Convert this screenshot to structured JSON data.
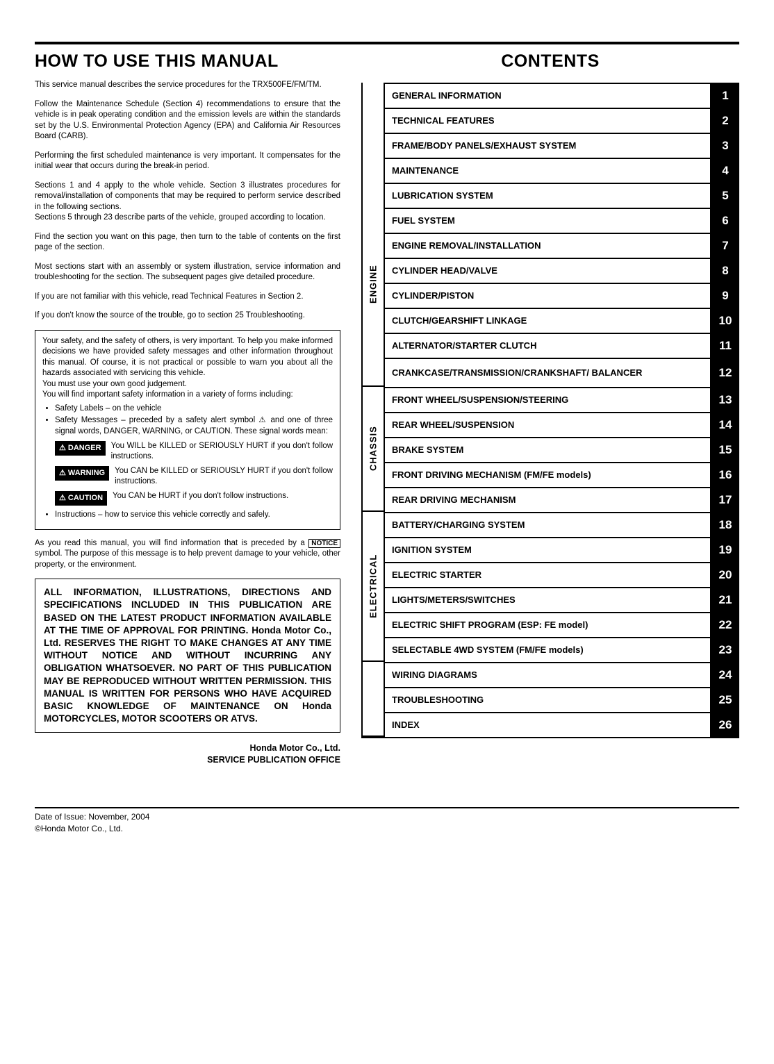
{
  "left": {
    "title": "HOW TO USE THIS MANUAL",
    "p1": "This service manual describes the service procedures for the TRX500FE/FM/TM.",
    "p2": "Follow the Maintenance Schedule (Section 4) recommendations to ensure that the vehicle is in peak operating condition and the emission levels are within the standards set by the U.S. Environmental Protection Agency (EPA) and California Air Resources Board (CARB).",
    "p3": "Performing the first scheduled maintenance is very important. It compensates for the initial wear that occurs during the break-in period.",
    "p4": "Sections 1 and 4 apply to the whole vehicle. Section 3 illustrates procedures for removal/installation of components that may be required to perform service described in the following sections.",
    "p4b": "Sections 5 through 23 describe parts of the vehicle, grouped according to location.",
    "p5": "Find the section you want on this page, then turn to the table of contents on the first page of the section.",
    "p6": "Most sections start with an assembly or system illustration, service information and troubleshooting for the section. The subsequent pages give detailed procedure.",
    "p7": "If you are not familiar with this vehicle, read Technical Features in Section 2.",
    "p8": "If you don't know the source of the trouble, go to section 25 Troubleshooting.",
    "safety_intro": "Your safety, and the safety of others, is very important. To help you make informed decisions we have provided safety messages and other information throughout this manual. Of course, it is not practical or possible to warn you about all the hazards associated with servicing this vehicle.",
    "safety_judgement": "You must use your own good judgement.",
    "safety_forms": "You will find important safety information in a variety of forms including:",
    "bullet_labels": "Safety Labels – on the vehicle",
    "bullet_messages": "Safety Messages – preceded by a safety alert symbol ⚠ and one of three signal words, DANGER, WARNING, or CAUTION. These signal words mean:",
    "danger_tag": "⚠ DANGER",
    "danger_text": "You WILL be KILLED or SERIOUSLY HURT if you don't follow instructions.",
    "warning_tag": "⚠ WARNING",
    "warning_text": "You CAN be KILLED or SERIOUSLY HURT if you don't follow instructions.",
    "caution_tag": "⚠ CAUTION",
    "caution_text": "You CAN be HURT if you don't follow instructions.",
    "bullet_instr": "Instructions – how to service this vehicle correctly and safely.",
    "notice_pre": "As you read this manual, you will find information that is preceded by a ",
    "notice_sym": "NOTICE",
    "notice_post": " symbol. The purpose of this message is to help prevent damage to your vehicle, other property, or the environment.",
    "disclaimer": "ALL INFORMATION, ILLUSTRATIONS, DIRECTIONS AND SPECIFICATIONS INCLUDED IN THIS PUBLICATION ARE BASED ON THE LATEST PRODUCT INFORMATION AVAILABLE AT THE TIME OF APPROVAL FOR PRINTING. Honda Motor Co., Ltd. RESERVES THE RIGHT TO MAKE CHANGES AT ANY TIME WITHOUT NOTICE AND WITHOUT INCURRING ANY OBLIGATION WHATSOEVER. NO PART OF THIS PUBLICATION MAY BE REPRODUCED WITHOUT WRITTEN PERMISSION. THIS MANUAL IS WRITTEN FOR PERSONS WHO HAVE ACQUIRED BASIC KNOWLEDGE OF MAINTENANCE ON Honda MOTORCYCLES, MOTOR SCOOTERS OR ATVS.",
    "sig1": "Honda Motor Co., Ltd.",
    "sig2": "SERVICE PUBLICATION OFFICE"
  },
  "right": {
    "title": "CONTENTS",
    "groups": [
      {
        "label": "",
        "span": 4
      },
      {
        "label": "ENGINE",
        "span": 8
      },
      {
        "label": "CHASSIS",
        "span": 5
      },
      {
        "label": "ELECTRICAL",
        "span": 6
      },
      {
        "label": "",
        "span": 3
      }
    ],
    "rows": [
      {
        "label": "GENERAL INFORMATION",
        "num": "1"
      },
      {
        "label": "TECHNICAL FEATURES",
        "num": "2"
      },
      {
        "label": "FRAME/BODY PANELS/EXHAUST SYSTEM",
        "num": "3"
      },
      {
        "label": "MAINTENANCE",
        "num": "4"
      },
      {
        "label": "LUBRICATION SYSTEM",
        "num": "5"
      },
      {
        "label": "FUEL SYSTEM",
        "num": "6"
      },
      {
        "label": "ENGINE REMOVAL/INSTALLATION",
        "num": "7"
      },
      {
        "label": "CYLINDER HEAD/VALVE",
        "num": "8"
      },
      {
        "label": "CYLINDER/PISTON",
        "num": "9"
      },
      {
        "label": "CLUTCH/GEARSHIFT LINKAGE",
        "num": "10"
      },
      {
        "label": "ALTERNATOR/STARTER CLUTCH",
        "num": "11"
      },
      {
        "label": "CRANKCASE/TRANSMISSION/CRANKSHAFT/ BALANCER",
        "num": "12",
        "tall": true
      },
      {
        "label": "FRONT WHEEL/SUSPENSION/STEERING",
        "num": "13"
      },
      {
        "label": "REAR WHEEL/SUSPENSION",
        "num": "14"
      },
      {
        "label": "BRAKE SYSTEM",
        "num": "15"
      },
      {
        "label": "FRONT DRIVING MECHANISM (FM/FE models)",
        "num": "16"
      },
      {
        "label": "REAR DRIVING MECHANISM",
        "num": "17"
      },
      {
        "label": "BATTERY/CHARGING SYSTEM",
        "num": "18"
      },
      {
        "label": "IGNITION SYSTEM",
        "num": "19"
      },
      {
        "label": "ELECTRIC STARTER",
        "num": "20"
      },
      {
        "label": "LIGHTS/METERS/SWITCHES",
        "num": "21"
      },
      {
        "label": "ELECTRIC SHIFT PROGRAM (ESP: FE model)",
        "num": "22"
      },
      {
        "label": "SELECTABLE 4WD SYSTEM (FM/FE models)",
        "num": "23"
      },
      {
        "label": "WIRING DIAGRAMS",
        "num": "24"
      },
      {
        "label": "TROUBLESHOOTING",
        "num": "25"
      },
      {
        "label": "INDEX",
        "num": "26"
      }
    ]
  },
  "footer": {
    "line1": "Date of Issue: November, 2004",
    "line2": "©Honda Motor Co., Ltd."
  }
}
